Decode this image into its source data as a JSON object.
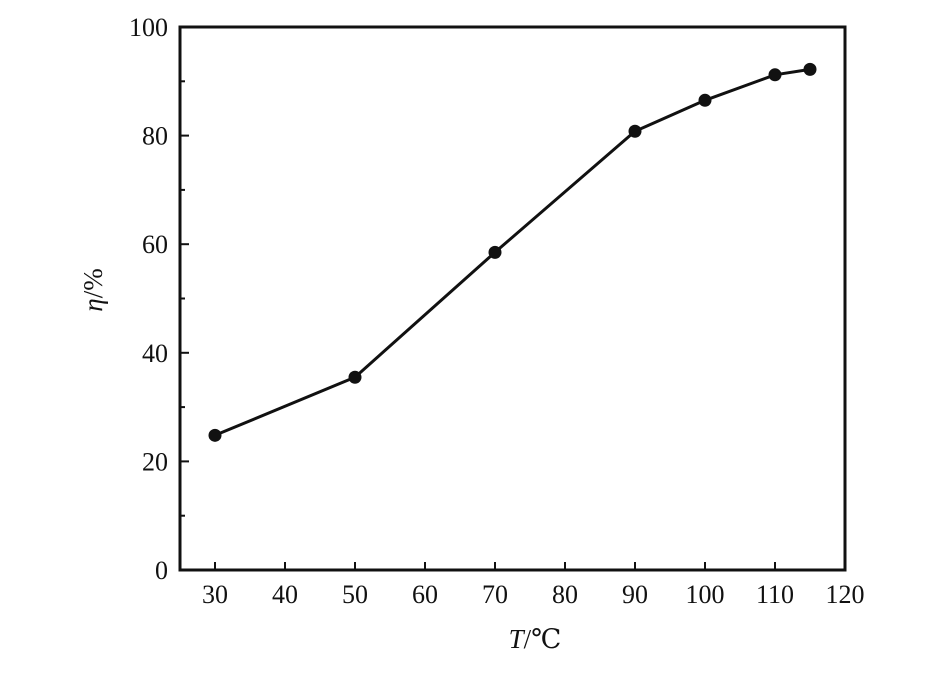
{
  "chart_data": {
    "type": "line",
    "title": "",
    "xlabel_var": "T",
    "xlabel_unit": "/℃",
    "ylabel_var": "η",
    "ylabel_unit": "/%",
    "x": [
      30,
      50,
      70,
      90,
      100,
      110,
      115
    ],
    "series": [
      {
        "values": [
          24.8,
          35.5,
          58.5,
          80.8,
          86.5,
          91.2,
          92.2
        ]
      }
    ],
    "xlim": [
      25,
      120
    ],
    "ylim": [
      0,
      100
    ],
    "x_ticks": [
      "30",
      "40",
      "50",
      "60",
      "70",
      "80",
      "90",
      "100",
      "110",
      "120"
    ],
    "y_ticks": [
      "0",
      "20",
      "40",
      "60",
      "80",
      "100"
    ],
    "grid": false,
    "marker": "filled-circle",
    "colors": {
      "line": "#111111",
      "marker": "#111111",
      "axes": "#111111"
    }
  }
}
